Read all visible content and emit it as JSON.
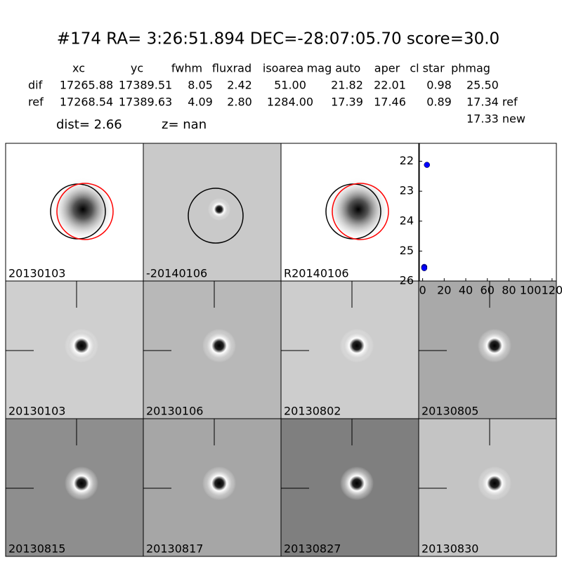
{
  "header": {
    "title": "#174   RA= 3:26:51.894 DEC=-28:07:05.70       score=30.0"
  },
  "table": {
    "columns": [
      "xc",
      "yc",
      "fwhm",
      "fluxrad",
      "isoarea",
      "mag auto",
      "aper",
      "cl star",
      "phmag"
    ],
    "rows": [
      [
        "dif",
        "17265.88",
        "17389.51",
        "8.05",
        "2.42",
        "51.00",
        "21.82",
        "22.01",
        "0.98",
        "25.50"
      ],
      [
        "ref",
        "17268.54",
        "17389.63",
        "4.09",
        "2.80",
        "1284.00",
        "17.39",
        "17.46",
        "0.89",
        "17.34 ref"
      ]
    ],
    "extra": "17.33 new"
  },
  "dist": "dist=  2.66",
  "z": "z=   nan",
  "panels": [
    {
      "label": "20130103"
    },
    {
      "label": "-20140106"
    },
    {
      "label": "R20140106"
    },
    {
      "label": "20130103",
      "color": "#ff0000"
    },
    {
      "label": "20130106"
    },
    {
      "label": "20130802"
    },
    {
      "label": "20130805"
    },
    {
      "label": "20130815"
    },
    {
      "label": "20130817"
    },
    {
      "label": "20130827"
    },
    {
      "label": "20130830"
    }
  ],
  "chart_data": {
    "type": "scatter",
    "x": [
      4,
      1.5,
      1.5
    ],
    "values": [
      22.12,
      25.53,
      25.57
    ],
    "color": "#0000ff",
    "xlim": [
      -3,
      124
    ],
    "xticks": [
      0,
      20,
      40,
      60,
      80,
      100,
      120
    ],
    "ylim": [
      26,
      21.4
    ],
    "yticks": [
      22,
      23,
      24,
      25,
      26
    ]
  }
}
